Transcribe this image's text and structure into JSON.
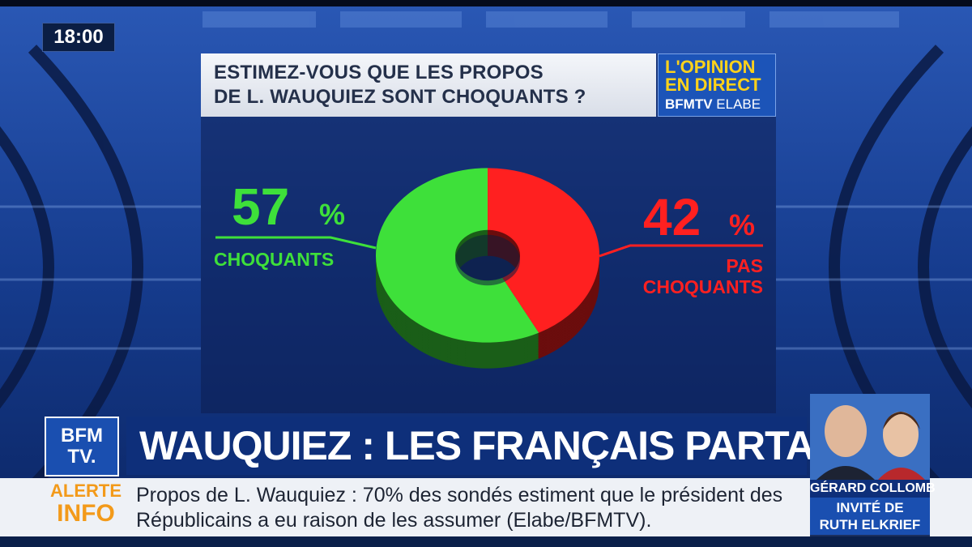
{
  "clock": {
    "time": "18:00"
  },
  "poll": {
    "question_line1": "ESTIMEZ-VOUS QUE LES PROPOS",
    "question_line2": "DE L. WAUQUIEZ SONT CHOQUANTS ?"
  },
  "opinion_badge": {
    "line1": "L'OPINION",
    "line2": "EN DIRECT",
    "brand": "BFMTV",
    "partner": "ELABE"
  },
  "chart_data": {
    "type": "pie",
    "style": "3d-donut",
    "categories": [
      "CHOQUANTS",
      "PAS CHOQUANTS"
    ],
    "values": [
      57,
      42
    ],
    "unit": "%",
    "labels": [
      {
        "value": "57",
        "unit": "%",
        "name": [
          "CHOQUANTS"
        ],
        "color": "#3ee03a"
      },
      {
        "value": "42",
        "unit": "%",
        "name": [
          "PAS",
          "CHOQUANTS"
        ],
        "color": "#ff2020"
      }
    ],
    "colors": [
      "#3ee03a",
      "#ff2020"
    ]
  },
  "bfm_logo": {
    "text": "BFM\nTV."
  },
  "headline": {
    "text": "WAUQUIEZ : LES FRANÇAIS PARTAGÉS"
  },
  "alert": {
    "label_top": "ALERTE",
    "label_bottom": "INFO",
    "text": "Propos de L. Wauquiez : 70% des sondés estiment que le président des Républicains a eu raison de les assumer (Elabe/BFMTV)."
  },
  "guest": {
    "name": "GÉRARD COLLOMB",
    "role_line1": "INVITÉ DE",
    "role_line2": "RUTH ELKRIEF"
  }
}
